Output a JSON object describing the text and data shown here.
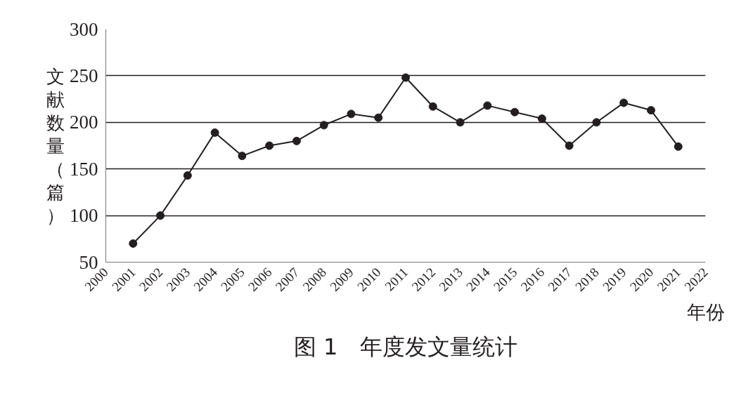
{
  "chart_data": {
    "type": "line",
    "title": "图 1　年度发文量统计",
    "xlabel": "年份",
    "ylabel": "文献数量（篇）",
    "x": [
      2001,
      2002,
      2003,
      2004,
      2005,
      2006,
      2007,
      2008,
      2009,
      2010,
      2011,
      2012,
      2013,
      2014,
      2015,
      2016,
      2017,
      2018,
      2019,
      2020,
      2021
    ],
    "series": [
      {
        "color": "#231f20",
        "values": [
          70,
          100,
          143,
          189,
          164,
          175,
          180,
          197,
          209,
          205,
          248,
          217,
          200,
          218,
          211,
          204,
          175,
          200,
          221,
          213,
          174
        ]
      }
    ],
    "xlim": [
      2000,
      2022
    ],
    "xticks": [
      2000,
      2001,
      2002,
      2003,
      2004,
      2005,
      2006,
      2007,
      2008,
      2009,
      2010,
      2011,
      2012,
      2013,
      2014,
      2015,
      2016,
      2017,
      2018,
      2019,
      2020,
      2021,
      2022
    ],
    "ylim": [
      50,
      300
    ],
    "yticks": [
      50,
      100,
      150,
      200,
      250,
      300
    ],
    "grid": "y",
    "marker": "circle",
    "line_style": "solid"
  }
}
